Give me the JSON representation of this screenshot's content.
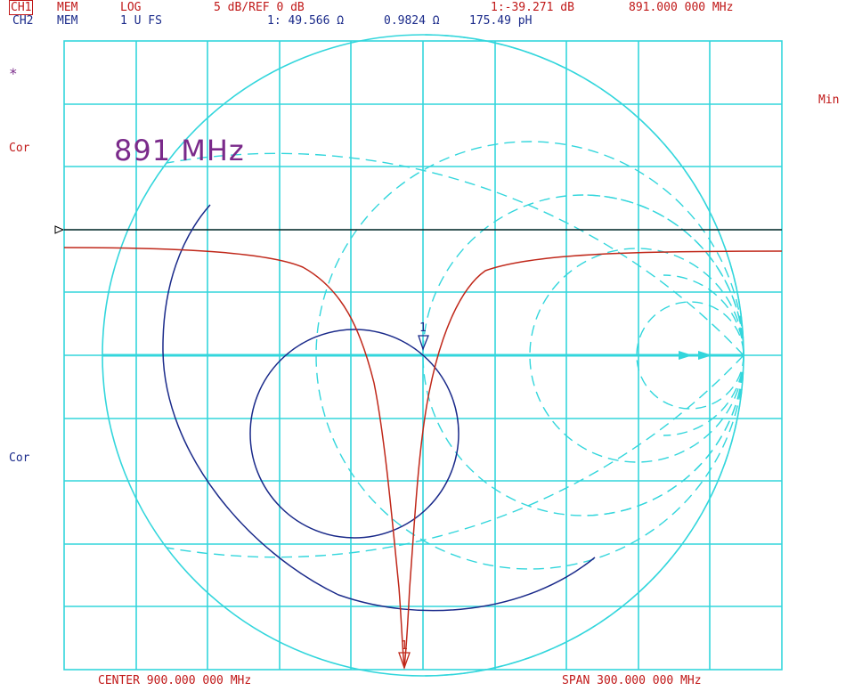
{
  "header": {
    "ch1": {
      "tag": "CH1",
      "mode": "MEM",
      "format": "LOG",
      "scale": "5 dB/REF 0 dB",
      "marker_value": "1:-39.271 dB",
      "marker_freq": "891.000 000 MHz"
    },
    "ch2": {
      "tag": "CH2",
      "mode": "MEM",
      "format": "1 U FS",
      "marker_value": "1: 49.566 Ω",
      "marker_reactance": "0.9824 Ω",
      "marker_inductance": "175.49 pH"
    }
  },
  "left_annotations": {
    "star": "*",
    "ch1_cor": "Cor",
    "ch2_cor": "Cor"
  },
  "right_annotations": {
    "min": "Min"
  },
  "marker_label": "891 MHz",
  "marker_number": "1",
  "footer": {
    "center": "CENTER 900.000 000 MHz",
    "span": "SPAN 300.000 000 MHz"
  },
  "colors": {
    "grid": "#33d6dc",
    "ch1_trace": "#c0281a",
    "ch2_trace": "#1a2a8a",
    "reference_line": "#000000"
  }
}
